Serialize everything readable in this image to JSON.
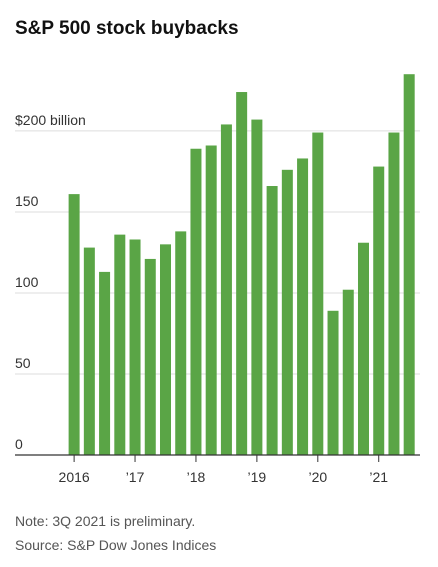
{
  "chart_data": {
    "type": "bar",
    "title": "S&P 500 stock buybacks",
    "categories": [
      "2016",
      null,
      null,
      null,
      "’17",
      null,
      null,
      null,
      "’18",
      null,
      null,
      null,
      "’19",
      null,
      null,
      null,
      "’20",
      null,
      null,
      null,
      "’21",
      null,
      null
    ],
    "values": [
      161,
      128,
      113,
      136,
      133,
      121,
      130,
      138,
      189,
      191,
      204,
      224,
      207,
      166,
      176,
      183,
      199,
      89,
      102,
      131,
      178,
      199,
      235
    ],
    "color": "#5aa546",
    "ylim": [
      0,
      245
    ],
    "yticks": [
      0,
      50,
      100,
      150,
      {
        "value": 200,
        "label": "$200 billion"
      }
    ],
    "grid": true,
    "note": "Note: 3Q 2021 is preliminary.",
    "source": "Source: S&P Dow Jones Indices"
  }
}
